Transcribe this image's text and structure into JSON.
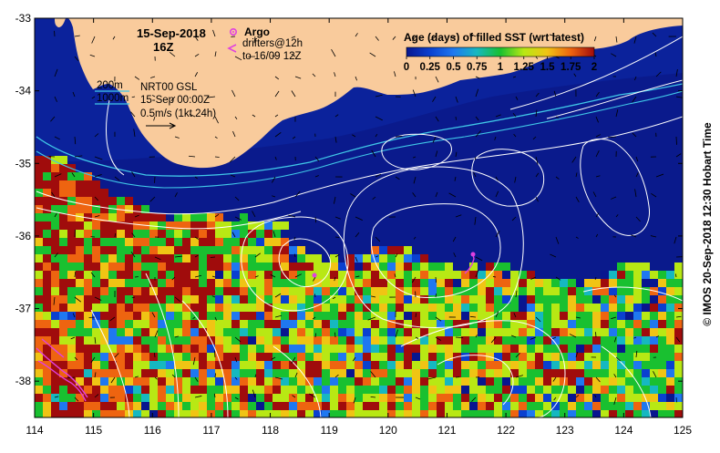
{
  "title": {
    "date": "15-Sep-2018",
    "time": "16Z"
  },
  "legend": {
    "argo_label": "Argo",
    "drifters_line1": "drifters@12h",
    "drifters_line2": "to 16/09 12Z",
    "isobath_200": "200m",
    "isobath_1000": "1000m",
    "model_line1": "NRT00 GSL",
    "model_line2": "15-Sep 00:00Z",
    "scale_label": "0.5m/s (1kt 24h)"
  },
  "colorbar": {
    "title": "Age (days) of filled SST (wrt latest)",
    "ticks": [
      "0",
      "0.25",
      "0.5",
      "0.75",
      "1",
      "1.25",
      "1.5",
      "1.75",
      "2"
    ],
    "tick_values": [
      0,
      0.25,
      0.5,
      0.75,
      1,
      1.25,
      1.5,
      1.75,
      2
    ],
    "colors": [
      "#08168f",
      "#0a40d0",
      "#1f78f0",
      "#16b8c0",
      "#19c030",
      "#b8e814",
      "#f0c414",
      "#ee6410",
      "#a00c0c"
    ]
  },
  "axes": {
    "lon_ticks": [
      "114",
      "115",
      "116",
      "117",
      "118",
      "119",
      "120",
      "121",
      "122",
      "123",
      "124",
      "125"
    ],
    "lon_values": [
      114,
      115,
      116,
      117,
      118,
      119,
      120,
      121,
      122,
      123,
      124,
      125
    ],
    "lat_ticks": [
      "-33",
      "-34",
      "-35",
      "-36",
      "-37",
      "-38"
    ],
    "lat_values": [
      -33,
      -34,
      -35,
      -36,
      -37,
      -38
    ],
    "lon_range": [
      114,
      125
    ],
    "lat_range": [
      -38.5,
      -33
    ]
  },
  "credit": "©  IMOS 20-Sep-2018 12:30 Hobart Time",
  "colors": {
    "ocean": "#0a1a8c",
    "land": "#f9cb9c",
    "argo": "#e040e0",
    "isobath": "#40c8e8",
    "contour": "#ffffff"
  }
}
